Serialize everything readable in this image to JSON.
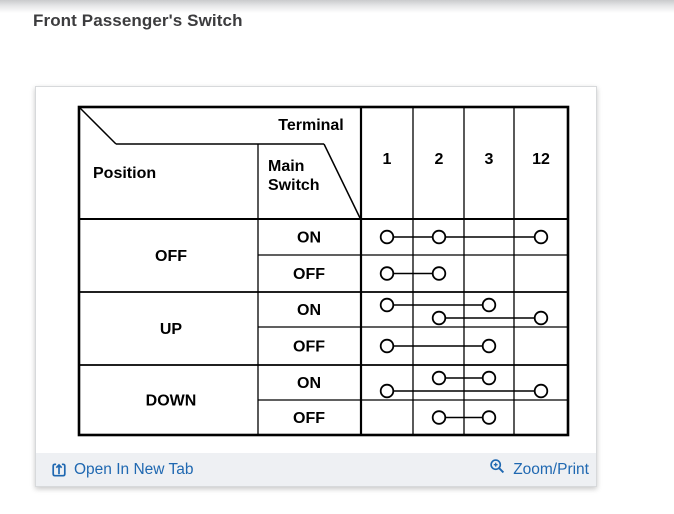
{
  "page": {
    "title": "Front Passenger's Switch"
  },
  "table": {
    "header": {
      "terminal_label": "Terminal",
      "position_label": "Position",
      "main_switch_line1": "Main",
      "main_switch_line2": "Switch",
      "terminals": [
        "1",
        "2",
        "3",
        "12"
      ]
    },
    "rows": [
      {
        "position": "OFF",
        "sub": [
          {
            "main_switch": "ON",
            "links": [
              {
                "circles": [
                  "1",
                  "2",
                  "12"
                ],
                "level": "mid"
              }
            ]
          },
          {
            "main_switch": "OFF",
            "links": [
              {
                "circles": [
                  "1",
                  "2"
                ],
                "level": "mid"
              }
            ]
          }
        ]
      },
      {
        "position": "UP",
        "sub": [
          {
            "main_switch": "ON",
            "links": [
              {
                "circles": [
                  "1",
                  "3"
                ],
                "level": "high"
              },
              {
                "circles": [
                  "2",
                  "12"
                ],
                "level": "low"
              }
            ]
          },
          {
            "main_switch": "OFF",
            "links": [
              {
                "circles": [
                  "1",
                  "3"
                ],
                "level": "mid"
              }
            ]
          }
        ]
      },
      {
        "position": "DOWN",
        "sub": [
          {
            "main_switch": "ON",
            "links": [
              {
                "circles": [
                  "2",
                  "3"
                ],
                "level": "high"
              },
              {
                "circles": [
                  "1",
                  "12"
                ],
                "level": "low"
              }
            ]
          },
          {
            "main_switch": "OFF",
            "links": [
              {
                "circles": [
                  "2",
                  "3"
                ],
                "level": "mid"
              }
            ]
          }
        ]
      }
    ]
  },
  "footer": {
    "open_label": "Open In New Tab",
    "zoom_label": "Zoom/Print"
  },
  "colors": {
    "link_blue": "#1f68b1",
    "table_line": "#000000",
    "footer_bg": "#eef0f3"
  }
}
